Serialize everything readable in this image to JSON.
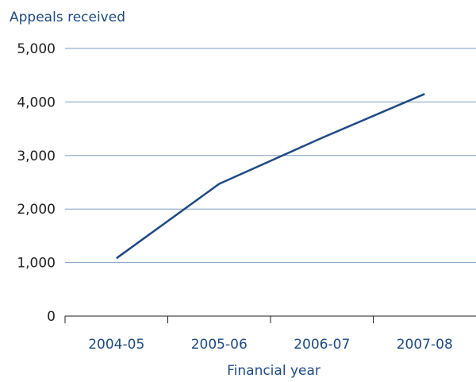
{
  "chart_data": {
    "type": "line",
    "ylabel": "Appeals received",
    "xlabel": "Financial year",
    "categories": [
      "2004-05",
      "2005-06",
      "2006-07",
      "2007-08"
    ],
    "series": [
      {
        "values": [
          1080,
          2470,
          3330,
          4150
        ]
      }
    ],
    "ylim": [
      0,
      5000
    ],
    "y_ticks": [
      0,
      1000,
      2000,
      3000,
      4000,
      5000
    ],
    "y_tick_labels": [
      "0",
      "1,000",
      "2,000",
      "3,000",
      "4,000",
      "5,000"
    ],
    "grid": true,
    "colors": {
      "line": "#1e4a82",
      "grid": "#7d9ec4",
      "axis": "#1f1f1f"
    }
  }
}
